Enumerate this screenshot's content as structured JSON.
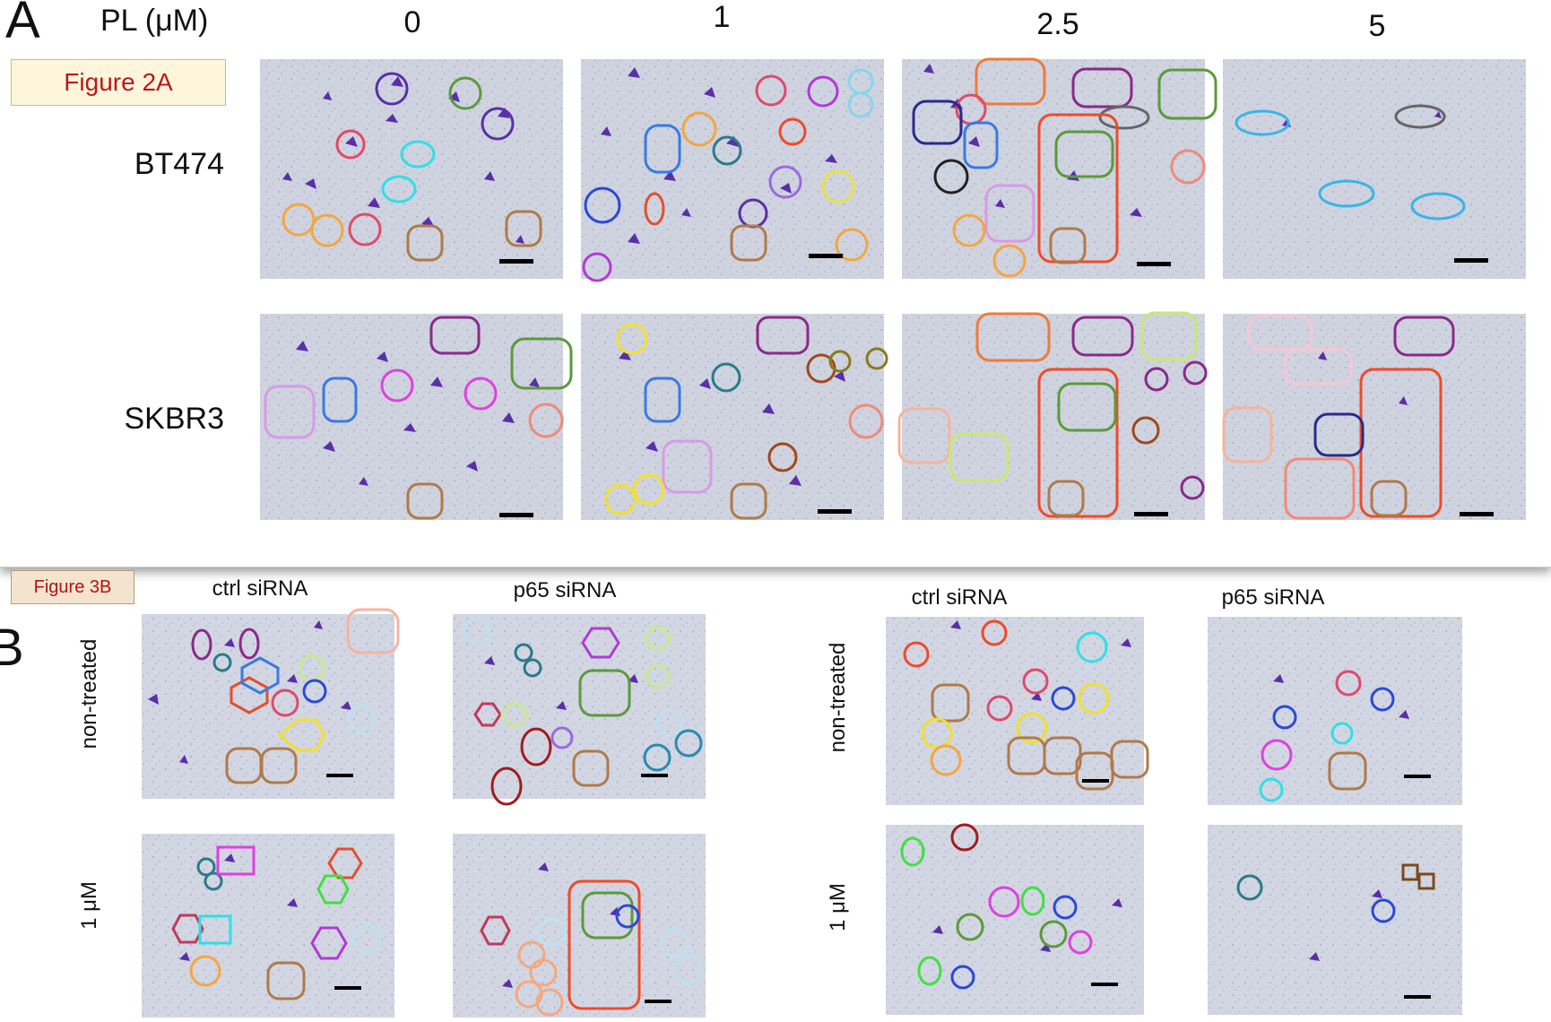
{
  "panel_a": {
    "letter": "A",
    "tag": "Figure 2A",
    "concentration_label": "PL (μM)",
    "columns": [
      "0",
      "1",
      "2.5",
      "5"
    ],
    "rows": [
      "BT474",
      "SKBR3"
    ]
  },
  "panel_b": {
    "letter": "B",
    "tag": "Figure 3B",
    "left_group_columns": [
      "ctrl siRNA",
      "p65 siRNA"
    ],
    "right_group_columns": [
      "ctrl siRNA",
      "p65 siRNA"
    ],
    "rows": [
      "non-treated",
      "1 μM"
    ]
  },
  "colors": {
    "stain": "#5a2fa8",
    "background_tint": "#cfd3df",
    "scale_bar": "#000000",
    "tag_text": "#c0161b",
    "annotation_red": "#f04a2a",
    "annotation_green": "#5c9a3a",
    "annotation_brown": "#b07a48",
    "annotation_purple": "#8a2a8a"
  }
}
